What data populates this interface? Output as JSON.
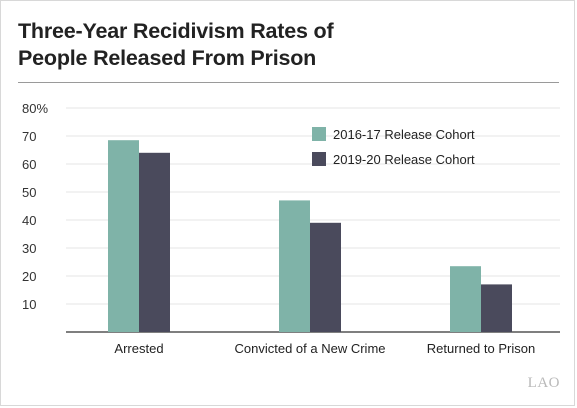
{
  "chart_data": {
    "type": "bar",
    "title": "Three-Year Recidivism Rates of People Released From Prison",
    "title_lines": [
      "Three-Year Recidivism Rates of",
      "People Released From Prison"
    ],
    "categories": [
      "Arrested",
      "Convicted of a New Crime",
      "Returned to Prison"
    ],
    "series": [
      {
        "name": "2016-17 Release Cohort",
        "values": [
          68.5,
          47,
          23.5
        ],
        "color": "#7fb3a8"
      },
      {
        "name": "2019-20 Release Cohort",
        "values": [
          64,
          39,
          17
        ],
        "color": "#4a4a5c"
      }
    ],
    "y_ticks": [
      10,
      20,
      30,
      40,
      50,
      60,
      70,
      80
    ],
    "y_tick_labels": [
      "10",
      "20",
      "30",
      "40",
      "50",
      "60",
      "70",
      "80%"
    ],
    "ylim": [
      0,
      80
    ],
    "xlabel": "",
    "ylabel": "",
    "grid": true,
    "legend_position": "top-right"
  },
  "watermark": "LAO"
}
